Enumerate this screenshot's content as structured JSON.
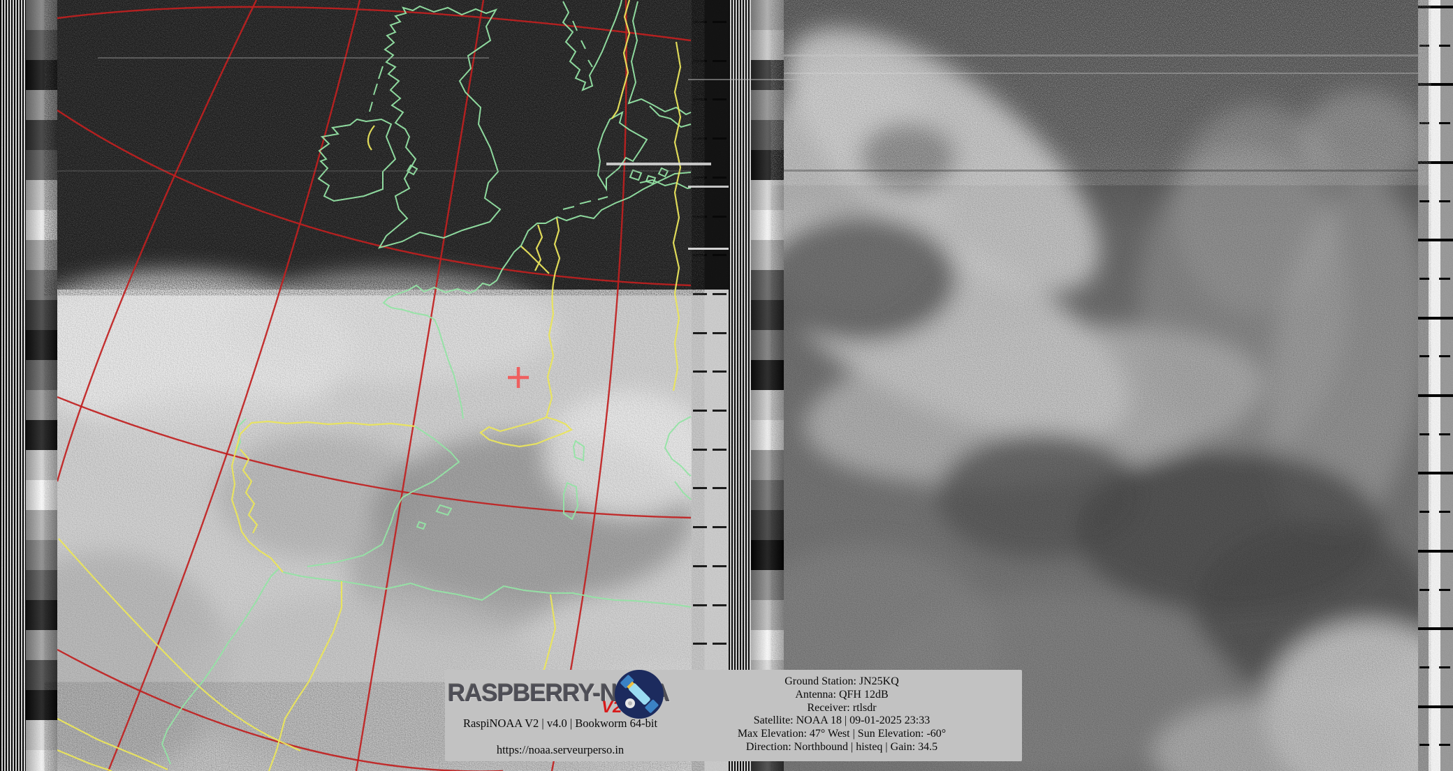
{
  "info_overlay": {
    "logo": {
      "brand": "RASPBERRY-NOAA",
      "version": "V2"
    },
    "left": {
      "build": "RaspiNOAA V2 | v4.0 | Bookworm 64-bit",
      "url": "https://noaa.serveurperso.in"
    },
    "right": {
      "ground_station": "Ground Station: JN25KQ",
      "antenna": "Antenna: QFH 12dB",
      "receiver": "Receiver: rtlsdr",
      "satellite": "Satellite: NOAA 18 | 09-01-2025 23:33",
      "elevation": "Max Elevation: 47° West | Sun Elevation: -60°",
      "direction": "Direction: Northbound | histeq | Gain: 34.5"
    }
  },
  "colors": {
    "grid_red": "#c02020",
    "coastline_green": "#93e3a4",
    "border_yellow": "#e9e45c",
    "station_marker_red": "#ef5f5f",
    "overlay_background": "#c2c2c2",
    "logo_v2_red": "#d81a1a",
    "logo_badge_navy": "#1c2b5e"
  },
  "decor": {
    "wedge_left": [
      "#7d7d7d",
      "#4f4f4f",
      "#0d0d0d",
      "#8f8f8f",
      "#303030",
      "#585858",
      "#c4c4c4",
      "#efefef",
      "#a6a6a6",
      "#6f6f6f",
      "#383838",
      "#101010",
      "#636363",
      "#949494",
      "#141414",
      "#d2d2d2",
      "#fbfbfb",
      "#b2b2b2",
      "#868686",
      "#565656",
      "#181818",
      "#9e9e9e",
      "#434343",
      "#0b0b0b",
      "#dedede",
      "#f4f4f4"
    ],
    "wedge_mid": [
      "#a8a8a8",
      "#c9c9c9",
      "#2e2e2e",
      "#8e8e8e",
      "#4a4a4a",
      "#111111",
      "#d6d6d6",
      "#f6f6f6",
      "#bcbcbc",
      "#5c5c5c",
      "#262626",
      "#767676",
      "#0f0f0f",
      "#cecece",
      "#ededed",
      "#989898",
      "#6a6a6a",
      "#343434",
      "#050505",
      "#8a8a8a",
      "#bebebe",
      "#fafafa",
      "#dcdcdc",
      "#a2a2a2",
      "#707070",
      "#3c3c3c"
    ],
    "block_height": 43,
    "marker_step": 55.7
  }
}
